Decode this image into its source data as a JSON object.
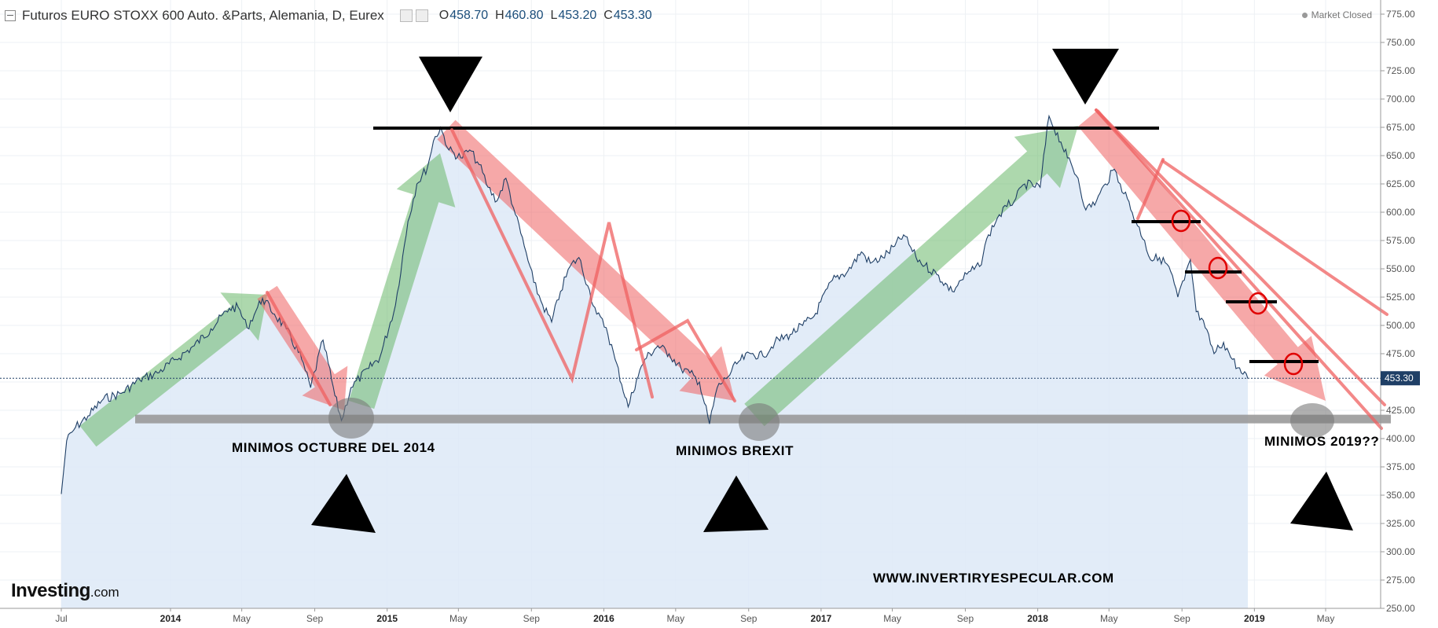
{
  "header": {
    "title": "Futuros EURO STOXX 600 Auto. &Parts, Alemania, D, Eurex",
    "open_label": "O",
    "open": "458.70",
    "high_label": "H",
    "high": "460.80",
    "low_label": "L",
    "low": "453.20",
    "close_label": "C",
    "close": "453.30",
    "status": "Market Closed"
  },
  "logo": {
    "brand": "Investing",
    "suffix": ".com"
  },
  "colors": {
    "price_line": "#1f3f66",
    "area_fill": "#dde9f7",
    "uptrend_arrow": "#6ab86a",
    "downtrend_arrow": "#ef6060",
    "support_line": "#9a9a9a",
    "current_price_badge": "#1f3f66"
  },
  "chart_data": {
    "type": "line",
    "title": "Futuros EURO STOXX 600 Auto. &Parts, Alemania, D, Eurex",
    "x_labels": [
      "Jul",
      "2014",
      "May",
      "Sep",
      "2015",
      "May",
      "Sep",
      "2016",
      "May",
      "Sep",
      "2017",
      "May",
      "Sep",
      "2018",
      "May",
      "Sep",
      "2019",
      "May"
    ],
    "x_dates": [
      "2013-07",
      "2014-01",
      "2014-05",
      "2014-09",
      "2015-01",
      "2015-05",
      "2015-09",
      "2016-01",
      "2016-05",
      "2016-09",
      "2017-01",
      "2017-05",
      "2017-09",
      "2018-01",
      "2018-05",
      "2018-09",
      "2019-01",
      "2019-05"
    ],
    "y_ticks": [
      "775.00",
      "750.00",
      "725.00",
      "700.00",
      "675.00",
      "650.00",
      "625.00",
      "600.00",
      "575.00",
      "550.00",
      "525.00",
      "500.00",
      "475.00",
      "450.00",
      "425.00",
      "400.00",
      "375.00",
      "350.00",
      "325.00",
      "300.00",
      "275.00",
      "250.00"
    ],
    "ylim": [
      250,
      775
    ],
    "grid": true,
    "current_price": "453.30",
    "series": [
      {
        "points": [
          [
            "2013-07-01",
            351
          ],
          [
            "2013-07-10",
            398
          ],
          [
            "2013-07-25",
            410
          ],
          [
            "2013-08-15",
            420
          ],
          [
            "2013-09-10",
            435
          ],
          [
            "2013-10-10",
            440
          ],
          [
            "2013-11-10",
            452
          ],
          [
            "2013-12-10",
            458
          ],
          [
            "2014-01-10",
            470
          ],
          [
            "2014-02-10",
            482
          ],
          [
            "2014-03-10",
            497
          ],
          [
            "2014-04-10",
            515
          ],
          [
            "2014-04-25",
            516
          ],
          [
            "2014-05-10",
            498
          ],
          [
            "2014-05-25",
            513
          ],
          [
            "2014-06-05",
            524
          ],
          [
            "2014-06-25",
            510
          ],
          [
            "2014-07-15",
            497
          ],
          [
            "2014-08-10",
            470
          ],
          [
            "2014-08-25",
            445
          ],
          [
            "2014-09-15",
            487
          ],
          [
            "2014-10-05",
            438
          ],
          [
            "2014-10-16",
            416
          ],
          [
            "2014-11-01",
            445
          ],
          [
            "2014-12-01",
            462
          ],
          [
            "2014-12-20",
            472
          ],
          [
            "2015-01-15",
            518
          ],
          [
            "2015-02-05",
            592
          ],
          [
            "2015-02-20",
            625
          ],
          [
            "2015-03-10",
            640
          ],
          [
            "2015-03-20",
            663
          ],
          [
            "2015-04-01",
            675
          ],
          [
            "2015-04-15",
            655
          ],
          [
            "2015-05-05",
            648
          ],
          [
            "2015-05-20",
            655
          ],
          [
            "2015-06-05",
            642
          ],
          [
            "2015-06-20",
            622
          ],
          [
            "2015-07-05",
            610
          ],
          [
            "2015-07-20",
            630
          ],
          [
            "2015-08-05",
            598
          ],
          [
            "2015-08-20",
            570
          ],
          [
            "2015-09-05",
            538
          ],
          [
            "2015-09-20",
            518
          ],
          [
            "2015-10-05",
            503
          ],
          [
            "2015-10-20",
            530
          ],
          [
            "2015-11-05",
            552
          ],
          [
            "2015-11-20",
            560
          ],
          [
            "2015-12-05",
            535
          ],
          [
            "2015-12-20",
            510
          ],
          [
            "2016-01-05",
            498
          ],
          [
            "2016-01-20",
            470
          ],
          [
            "2016-02-11",
            428
          ],
          [
            "2016-02-25",
            452
          ],
          [
            "2016-03-10",
            470
          ],
          [
            "2016-04-01",
            482
          ],
          [
            "2016-04-20",
            475
          ],
          [
            "2016-05-10",
            462
          ],
          [
            "2016-05-25",
            458
          ],
          [
            "2016-06-10",
            450
          ],
          [
            "2016-06-27",
            413
          ],
          [
            "2016-07-10",
            445
          ],
          [
            "2016-07-25",
            453
          ],
          [
            "2016-08-15",
            468
          ],
          [
            "2016-09-05",
            475
          ],
          [
            "2016-09-25",
            473
          ],
          [
            "2016-10-15",
            485
          ],
          [
            "2016-11-10",
            492
          ],
          [
            "2016-12-01",
            500
          ],
          [
            "2016-12-20",
            508
          ],
          [
            "2017-01-20",
            540
          ],
          [
            "2017-02-15",
            548
          ],
          [
            "2017-03-10",
            565
          ],
          [
            "2017-03-25",
            555
          ],
          [
            "2017-04-15",
            560
          ],
          [
            "2017-05-05",
            570
          ],
          [
            "2017-05-20",
            580
          ],
          [
            "2017-06-10",
            560
          ],
          [
            "2017-06-25",
            553
          ],
          [
            "2017-07-15",
            545
          ],
          [
            "2017-08-10",
            530
          ],
          [
            "2017-08-25",
            540
          ],
          [
            "2017-09-10",
            548
          ],
          [
            "2017-09-25",
            552
          ],
          [
            "2017-10-10",
            580
          ],
          [
            "2017-10-25",
            595
          ],
          [
            "2017-11-10",
            605
          ],
          [
            "2017-11-25",
            612
          ],
          [
            "2017-12-10",
            625
          ],
          [
            "2018-01-05",
            622
          ],
          [
            "2018-01-20",
            685
          ],
          [
            "2018-02-09",
            662
          ],
          [
            "2018-02-20",
            648
          ],
          [
            "2018-03-10",
            630
          ],
          [
            "2018-03-23",
            602
          ],
          [
            "2018-04-10",
            610
          ],
          [
            "2018-04-25",
            625
          ],
          [
            "2018-05-10",
            638
          ],
          [
            "2018-05-20",
            625
          ],
          [
            "2018-06-01",
            612
          ],
          [
            "2018-06-15",
            592
          ],
          [
            "2018-06-30",
            575
          ],
          [
            "2018-07-10",
            558
          ],
          [
            "2018-07-25",
            560
          ],
          [
            "2018-08-10",
            552
          ],
          [
            "2018-08-25",
            525
          ],
          [
            "2018-09-05",
            540
          ],
          [
            "2018-09-15",
            558
          ],
          [
            "2018-09-25",
            512
          ],
          [
            "2018-10-10",
            498
          ],
          [
            "2018-10-25",
            475
          ],
          [
            "2018-11-10",
            485
          ],
          [
            "2018-11-25",
            470
          ],
          [
            "2018-12-10",
            458
          ],
          [
            "2018-12-21",
            453
          ]
        ]
      }
    ],
    "annotations": [
      {
        "type": "text",
        "text": "MINIMOS OCTUBRE DEL 2014"
      },
      {
        "type": "text",
        "text": "MINIMOS BREXIT"
      },
      {
        "type": "text",
        "text": "MINIMOS 2019??"
      },
      {
        "type": "text",
        "text": "WWW.INVERTIRYESPECULAR.COM"
      },
      {
        "type": "horizontal_line",
        "label": "resistance",
        "value": 675
      },
      {
        "type": "horizontal_line",
        "label": "support",
        "value": 418
      }
    ]
  }
}
